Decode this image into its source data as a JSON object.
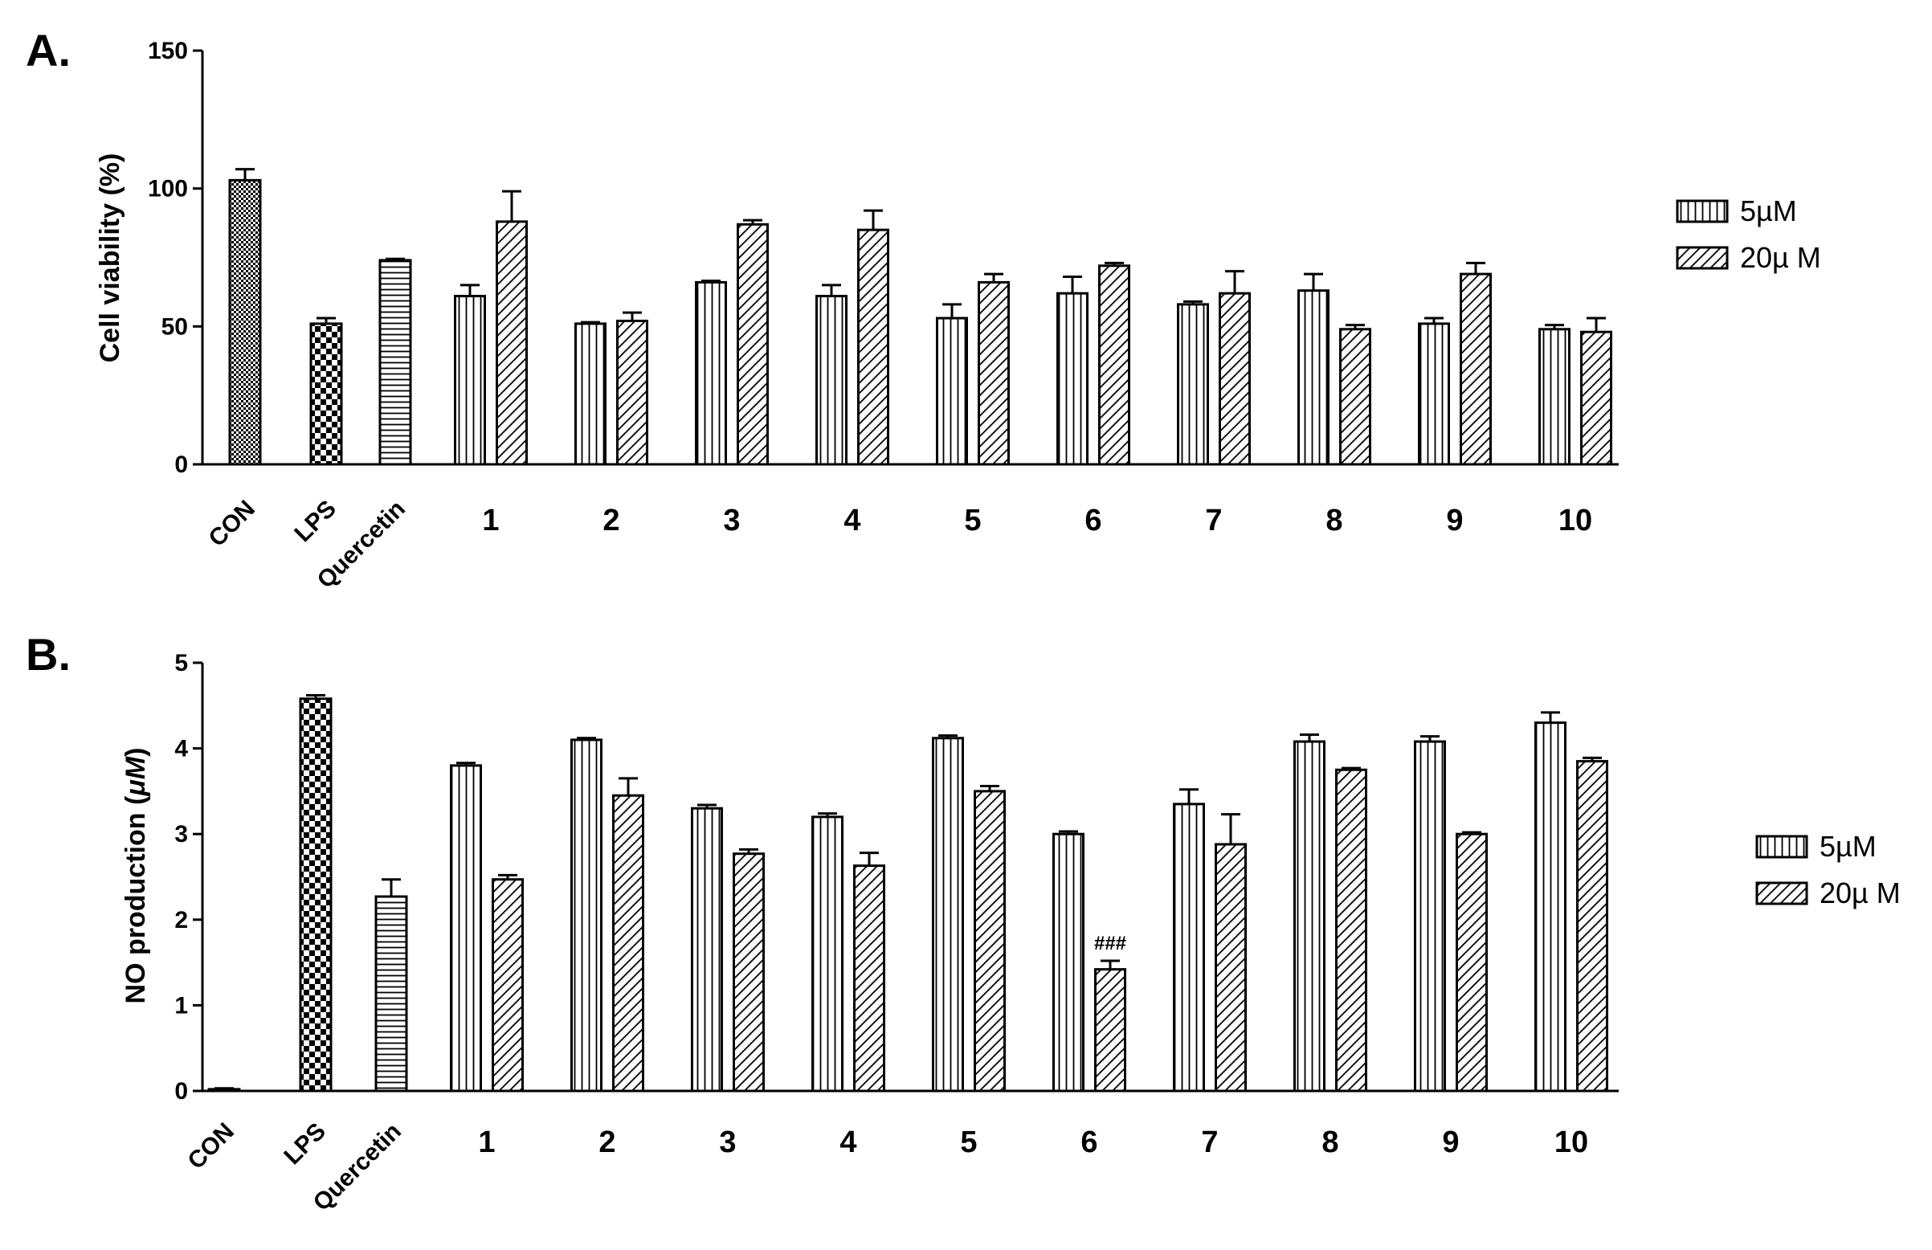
{
  "chart_data": [
    {
      "type": "bar",
      "panel_label": "A.",
      "ylabel": "Cell viability (%)",
      "ylim": [
        0,
        150
      ],
      "yticks": [
        0,
        50,
        100,
        150
      ],
      "grid": false,
      "legend_placement": "right",
      "groups": [
        {
          "label": "CON",
          "bars": [
            {
              "value": 103,
              "error": 4,
              "pattern": "checker-fine"
            }
          ]
        },
        {
          "label": "LPS",
          "bars": [
            {
              "value": 51,
              "error": 2,
              "pattern": "checker-coarse"
            }
          ]
        },
        {
          "label": "Quercetin",
          "bars": [
            {
              "value": 74,
              "error": 0.5,
              "pattern": "hlines"
            }
          ]
        },
        {
          "label": "1",
          "bars": [
            {
              "series": "5µM",
              "value": 61,
              "error": 4
            },
            {
              "series": "20µ M",
              "value": 88,
              "error": 11
            }
          ]
        },
        {
          "label": "2",
          "bars": [
            {
              "series": "5µM",
              "value": 51,
              "error": 0.5
            },
            {
              "series": "20µ M",
              "value": 52,
              "error": 3
            }
          ]
        },
        {
          "label": "3",
          "bars": [
            {
              "series": "5µM",
              "value": 66,
              "error": 0.5
            },
            {
              "series": "20µ M",
              "value": 87,
              "error": 1.5
            }
          ]
        },
        {
          "label": "4",
          "bars": [
            {
              "series": "5µM",
              "value": 61,
              "error": 4
            },
            {
              "series": "20µ M",
              "value": 85,
              "error": 7
            }
          ]
        },
        {
          "label": "5",
          "bars": [
            {
              "series": "5µM",
              "value": 53,
              "error": 5
            },
            {
              "series": "20µ M",
              "value": 66,
              "error": 3
            }
          ]
        },
        {
          "label": "6",
          "bars": [
            {
              "series": "5µM",
              "value": 62,
              "error": 6
            },
            {
              "series": "20µ M",
              "value": 72,
              "error": 1
            }
          ]
        },
        {
          "label": "7",
          "bars": [
            {
              "series": "5µM",
              "value": 58,
              "error": 1
            },
            {
              "series": "20µ M",
              "value": 62,
              "error": 8
            }
          ]
        },
        {
          "label": "8",
          "bars": [
            {
              "series": "5µM",
              "value": 63,
              "error": 6
            },
            {
              "series": "20µ M",
              "value": 49,
              "error": 1.5
            }
          ]
        },
        {
          "label": "9",
          "bars": [
            {
              "series": "5µM",
              "value": 51,
              "error": 2
            },
            {
              "series": "20µ M",
              "value": 69,
              "error": 4
            }
          ]
        },
        {
          "label": "10",
          "bars": [
            {
              "series": "5µM",
              "value": 49,
              "error": 1.5
            },
            {
              "series": "20µ M",
              "value": 48,
              "error": 5
            }
          ]
        }
      ],
      "legend": [
        {
          "label": "5µM",
          "pattern": "vlines"
        },
        {
          "label": "20µ M",
          "pattern": "diag"
        }
      ]
    },
    {
      "type": "bar",
      "panel_label": "B.",
      "ylabel_prefix": "NO production (",
      "ylabel_unit": "μM",
      "ylabel_suffix": ")",
      "ylim": [
        0,
        5
      ],
      "yticks": [
        0,
        1,
        2,
        3,
        4,
        5
      ],
      "grid": false,
      "legend_placement": "right",
      "groups": [
        {
          "label": "CON",
          "bars": [
            {
              "value": 0.02,
              "error": 0.01,
              "pattern": "plain"
            }
          ]
        },
        {
          "label": "LPS",
          "bars": [
            {
              "value": 4.58,
              "error": 0.04,
              "pattern": "checker-coarse"
            }
          ]
        },
        {
          "label": "Quercetin",
          "bars": [
            {
              "value": 2.27,
              "error": 0.2,
              "pattern": "hlines"
            }
          ]
        },
        {
          "label": "1",
          "bars": [
            {
              "series": "5µM",
              "value": 3.8,
              "error": 0.03
            },
            {
              "series": "20µ M",
              "value": 2.47,
              "error": 0.05
            }
          ]
        },
        {
          "label": "2",
          "bars": [
            {
              "series": "5µM",
              "value": 4.1,
              "error": 0.02
            },
            {
              "series": "20µ M",
              "value": 3.45,
              "error": 0.2
            }
          ]
        },
        {
          "label": "3",
          "bars": [
            {
              "series": "5µM",
              "value": 3.3,
              "error": 0.04
            },
            {
              "series": "20µ M",
              "value": 2.77,
              "error": 0.05
            }
          ]
        },
        {
          "label": "4",
          "bars": [
            {
              "series": "5µM",
              "value": 3.2,
              "error": 0.04
            },
            {
              "series": "20µ M",
              "value": 2.63,
              "error": 0.15
            }
          ]
        },
        {
          "label": "5",
          "bars": [
            {
              "series": "5µM",
              "value": 4.12,
              "error": 0.03
            },
            {
              "series": "20µ M",
              "value": 3.5,
              "error": 0.06
            }
          ]
        },
        {
          "label": "6",
          "bars": [
            {
              "series": "5µM",
              "value": 3.0,
              "error": 0.03
            },
            {
              "series": "20µ M",
              "value": 1.42,
              "error": 0.1,
              "annotation": "###"
            }
          ]
        },
        {
          "label": "7",
          "bars": [
            {
              "series": "5µM",
              "value": 3.35,
              "error": 0.17
            },
            {
              "series": "20µ M",
              "value": 2.88,
              "error": 0.35
            }
          ]
        },
        {
          "label": "8",
          "bars": [
            {
              "series": "5µM",
              "value": 4.08,
              "error": 0.08
            },
            {
              "series": "20µ M",
              "value": 3.75,
              "error": 0.02
            }
          ]
        },
        {
          "label": "9",
          "bars": [
            {
              "series": "5µM",
              "value": 4.08,
              "error": 0.06
            },
            {
              "series": "20µ M",
              "value": 3.0,
              "error": 0.02
            }
          ]
        },
        {
          "label": "10",
          "bars": [
            {
              "series": "5µM",
              "value": 4.3,
              "error": 0.12
            },
            {
              "series": "20µ M",
              "value": 3.85,
              "error": 0.04
            }
          ]
        }
      ],
      "legend": [
        {
          "label": "5µM",
          "pattern": "vlines"
        },
        {
          "label": "20µ M",
          "pattern": "diag"
        }
      ]
    }
  ]
}
